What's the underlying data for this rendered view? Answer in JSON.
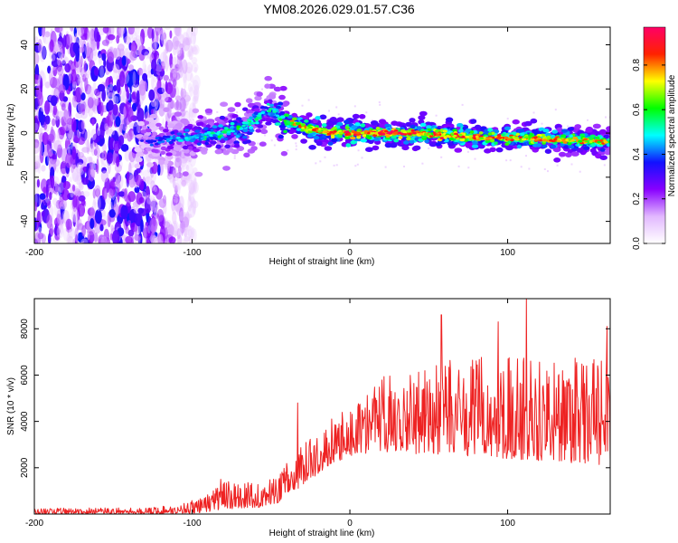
{
  "title": "YM08.2026.029.01.57.C36",
  "colors": {
    "snr_line": "#ee2222",
    "frame": "#000000"
  },
  "chart_data": [
    {
      "type": "heatmap",
      "name": "spectrogram",
      "xlabel": "Height of straight line (km)",
      "ylabel": "Frequency (Hz)",
      "xlim": [
        -200,
        165
      ],
      "ylim": [
        -50,
        48
      ],
      "xticks": [
        -200,
        -100,
        0,
        100
      ],
      "yticks": [
        -40,
        -20,
        0,
        20,
        40
      ],
      "colorbar": {
        "label": "Normalized spectral amplitude",
        "range": [
          0,
          0.97
        ],
        "ticks": [
          0.0,
          0.2,
          0.4,
          0.6,
          0.8
        ],
        "colormap": [
          "#ffffff",
          "#e2b8ff",
          "#8800ff",
          "#1111ff",
          "#00ffff",
          "#00ff00",
          "#ffff00",
          "#ff2200",
          "#ff0066"
        ]
      },
      "noise_region_km": [
        -200,
        -105
      ],
      "ridge": {
        "x": [
          -135,
          -120,
          -100,
          -80,
          -70,
          -60,
          -52,
          -45,
          -40,
          -30,
          -20,
          -10,
          0,
          20,
          40,
          60,
          80,
          100,
          120,
          140,
          160,
          165
        ],
        "freq": [
          -4,
          -3,
          -2,
          0,
          2,
          6,
          11,
          7,
          5,
          3,
          1,
          0,
          0,
          0,
          0,
          -1,
          -2,
          -2,
          -3,
          -3,
          -4,
          -4
        ],
        "peak_amplitude": [
          0.3,
          0.4,
          0.5,
          0.55,
          0.6,
          0.55,
          0.5,
          0.6,
          0.7,
          0.8,
          0.85,
          0.85,
          0.9,
          0.9,
          0.88,
          0.85,
          0.85,
          0.82,
          0.82,
          0.8,
          0.8,
          0.7
        ]
      }
    },
    {
      "type": "line",
      "name": "snr",
      "xlabel": "Height of straight line (km)",
      "ylabel": "SNR (10 * v/v)",
      "xlim": [
        -200,
        165
      ],
      "ylim": [
        0,
        9300
      ],
      "xticks": [
        -200,
        -100,
        0,
        100
      ],
      "yticks": [
        2000,
        4000,
        6000,
        8000
      ],
      "envelope": {
        "x": [
          -200,
          -130,
          -110,
          -95,
          -80,
          -70,
          -55,
          -45,
          -35,
          -25,
          -15,
          0,
          10,
          20,
          40,
          60,
          80,
          100,
          120,
          140,
          165
        ],
        "low": [
          0,
          0,
          0,
          50,
          200,
          250,
          300,
          500,
          1000,
          1500,
          2000,
          2500,
          2600,
          2700,
          2600,
          2500,
          2500,
          2400,
          2300,
          2200,
          2100
        ],
        "high": [
          250,
          280,
          400,
          700,
          1400,
          1400,
          1300,
          1800,
          2600,
          3300,
          4000,
          4600,
          5300,
          6000,
          6400,
          6600,
          6800,
          6900,
          6900,
          6800,
          6700
        ]
      },
      "notable_peaks": [
        {
          "x": -82,
          "y": 1500
        },
        {
          "x": -33,
          "y": 4800
        },
        {
          "x": 58,
          "y": 8600
        },
        {
          "x": 94,
          "y": 8300
        },
        {
          "x": 112,
          "y": 9300
        },
        {
          "x": 163,
          "y": 8100
        }
      ]
    }
  ]
}
